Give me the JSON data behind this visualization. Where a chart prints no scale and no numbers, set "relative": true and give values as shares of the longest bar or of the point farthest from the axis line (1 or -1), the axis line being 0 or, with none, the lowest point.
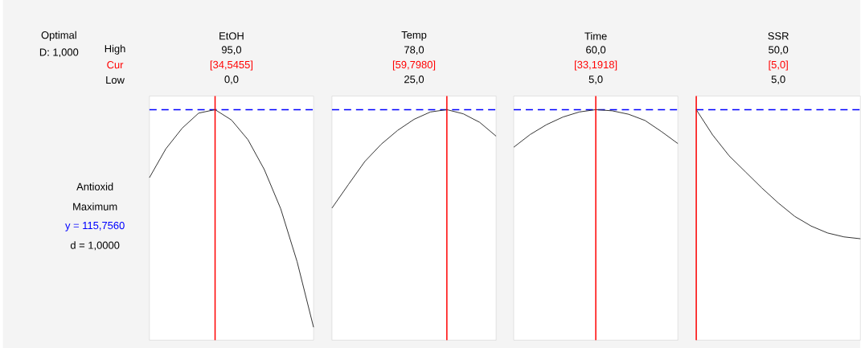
{
  "chart_data": [
    {
      "type": "other",
      "annotations": [
        "Optimal",
        "D: 1,000",
        "High",
        "Cur",
        "Low",
        "Antioxid",
        "Maximum",
        "y = 115,7560",
        "d = 1,0000"
      ]
    },
    {
      "type": "line",
      "title": "EtOH",
      "relative": true,
      "annotations": [
        "95,0",
        "[34,5455]",
        "0,0"
      ],
      "categories": [
        null,
        null,
        null,
        null,
        null,
        null,
        null,
        null,
        null,
        null,
        null
      ],
      "ref_lines": [
        {
          "axis": "y",
          "value": 1,
          "color": "#0000ff",
          "line_style": "dashed"
        }
      ],
      "series": [
        {
          "color": "#333333",
          "values": [
            0.705,
            0.83,
            0.92,
            0.985,
            1,
            0.955,
            0.87,
            0.74,
            0.57,
            0.34,
            0.056
          ]
        }
      ]
    },
    {
      "type": "line",
      "title": "Temp",
      "relative": true,
      "annotations": [
        "78,0",
        "[59,7980]",
        "25,0"
      ],
      "categories": [
        null,
        null,
        null,
        null,
        null,
        null,
        null,
        null,
        null,
        null,
        null
      ],
      "ref_lines": [
        {
          "axis": "y",
          "value": 1,
          "color": "#0000ff",
          "line_style": "dashed"
        }
      ],
      "series": [
        {
          "color": "#333333",
          "values": [
            0.573,
            0.675,
            0.775,
            0.85,
            0.91,
            0.958,
            0.99,
            1,
            0.982,
            0.945,
            0.885
          ]
        }
      ]
    },
    {
      "type": "line",
      "title": "Time",
      "relative": true,
      "annotations": [
        "60,0",
        "[33,1918]",
        "5,0"
      ],
      "categories": [
        null,
        null,
        null,
        null,
        null,
        null,
        null,
        null,
        null,
        null,
        null
      ],
      "ref_lines": [
        {
          "axis": "y",
          "value": 1,
          "color": "#0000ff",
          "line_style": "dashed"
        }
      ],
      "series": [
        {
          "color": "#333333",
          "values": [
            0.837,
            0.892,
            0.935,
            0.968,
            0.99,
            1,
            0.995,
            0.98,
            0.953,
            0.905,
            0.853
          ]
        }
      ]
    },
    {
      "type": "line",
      "title": "SSR",
      "relative": true,
      "annotations": [
        "50,0",
        "[5,0]",
        "5,0"
      ],
      "categories": [
        null,
        null,
        null,
        null,
        null,
        null,
        null,
        null,
        null,
        null,
        null
      ],
      "ref_lines": [
        {
          "axis": "y",
          "value": 1,
          "color": "#0000ff",
          "line_style": "dashed"
        }
      ],
      "series": [
        {
          "color": "#333333",
          "values": [
            1,
            0.89,
            0.8,
            0.73,
            0.66,
            0.595,
            0.537,
            0.495,
            0.465,
            0.448,
            0.44
          ]
        }
      ]
    }
  ]
}
